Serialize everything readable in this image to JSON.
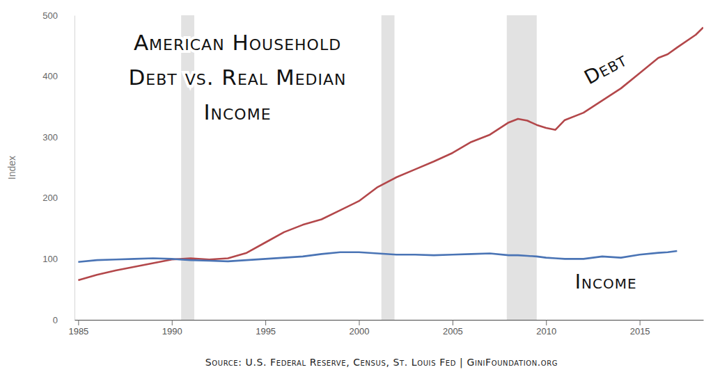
{
  "chart_data": {
    "type": "line",
    "title": [
      "American Household",
      "Debt vs. Real Median",
      "Income"
    ],
    "y_label": "Index",
    "source": "Source: U.S. Federal Reserve, Census, St. Louis Fed | GiniFoundation.org",
    "x": [
      1985,
      1986,
      1987,
      1988,
      1989,
      1990,
      1991,
      1992,
      1993,
      1994,
      1995,
      1996,
      1997,
      1998,
      1999,
      2000,
      2001,
      2002,
      2003,
      2004,
      2005,
      2006,
      2007,
      2008,
      2008.5,
      2009,
      2009.5,
      2010,
      2010.5,
      2011,
      2012,
      2013,
      2014,
      2015,
      2016,
      2016.5,
      2017,
      2018,
      2018.4
    ],
    "series": [
      {
        "name": "Debt",
        "color": "#b3474a",
        "values": [
          65,
          74,
          81,
          87,
          93,
          99,
          101,
          99,
          101,
          110,
          127,
          144,
          156,
          165,
          180,
          195,
          218,
          234,
          247,
          260,
          274,
          292,
          304,
          324,
          330,
          327,
          320,
          315,
          312,
          328,
          340,
          360,
          380,
          405,
          430,
          436,
          447,
          468,
          480
        ]
      },
      {
        "name": "Income",
        "color": "#4a74b5",
        "values": [
          95,
          98,
          99,
          100,
          101,
          100,
          98,
          97,
          96,
          98,
          100,
          102,
          104,
          108,
          111,
          111,
          109,
          107,
          107,
          106,
          107,
          108,
          109,
          106,
          106,
          105,
          104,
          102,
          101,
          100,
          100,
          104,
          102,
          107,
          110,
          111,
          113,
          null,
          null
        ]
      }
    ],
    "recessions": [
      [
        1990.5,
        1991.2
      ],
      [
        2001.2,
        2001.9
      ],
      [
        2007.9,
        2009.5
      ]
    ],
    "annotations": [
      {
        "text": "Debt",
        "x": 2013.2,
        "y": 411
      },
      {
        "text": "Income",
        "x": 2013.2,
        "y": 60
      }
    ],
    "xlim": [
      1984.8,
      2018.4
    ],
    "xticks": [
      1985,
      1990,
      1995,
      2000,
      2005,
      2010,
      2015
    ],
    "ylim": [
      0,
      500
    ],
    "yticks": [
      0,
      100,
      200,
      300,
      400,
      500
    ],
    "grid": false
  }
}
